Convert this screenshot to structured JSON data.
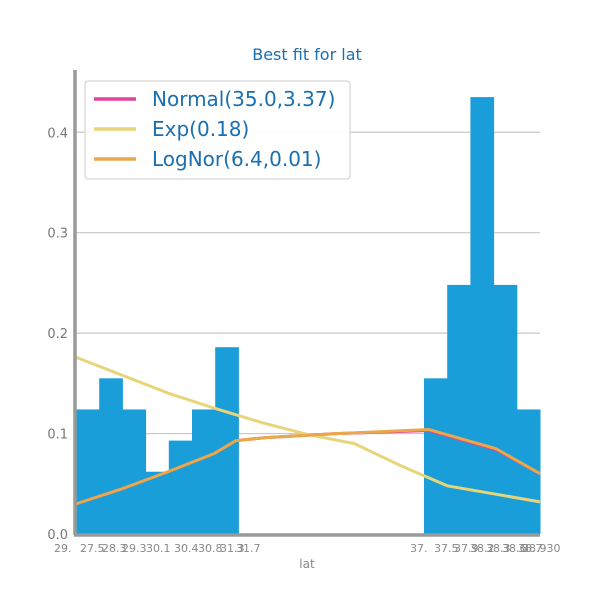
{
  "chart_data": {
    "type": "bar",
    "title": "Best fit for lat",
    "xlabel": "lat",
    "ylabel": "",
    "ylim": [
      0,
      0.46
    ],
    "yticks": [
      "0.0",
      "0.1",
      "0.2",
      "0.3",
      "0.4"
    ],
    "ytick_values": [
      0,
      0.1,
      0.2,
      0.3,
      0.4
    ],
    "histogram": {
      "color": "#1a9ed9",
      "values": [
        0.124,
        0.155,
        0.124,
        0.062,
        0.093,
        0.124,
        0.186,
        0,
        0,
        0,
        0,
        0,
        0,
        0,
        0,
        0.155,
        0.248,
        0.435,
        0.248,
        0.124
      ]
    },
    "x_tick_labels": [
      "29.",
      "27.5",
      "28.3",
      "29.3",
      "30.1",
      "30.4",
      "30.8",
      "31.3",
      "31.7",
      "37.",
      "37.5",
      "37.9",
      "38.2",
      "38.3",
      "38.6",
      "38.7",
      "38.930"
    ],
    "series": [
      {
        "name": "Normal(35.0,3.37)",
        "color": "#e0449a",
        "values": [
          0.03,
          0.045,
          0.062,
          0.08,
          0.093,
          0.096,
          0.1,
          0.103,
          0.084,
          0.06
        ]
      },
      {
        "name": "Exp(0.18)",
        "color": "#e8d57a",
        "values": [
          0.176,
          0.158,
          0.14,
          0.125,
          0.111,
          0.099,
          0.09,
          0.068,
          0.048,
          0.04,
          0.032
        ]
      },
      {
        "name": "LogNor(6.4,0.01)",
        "color": "#eaa848",
        "values": [
          0.03,
          0.045,
          0.062,
          0.08,
          0.093,
          0.096,
          0.1,
          0.104,
          0.085,
          0.06
        ]
      }
    ],
    "legend_position": "top-left",
    "grid": true
  }
}
